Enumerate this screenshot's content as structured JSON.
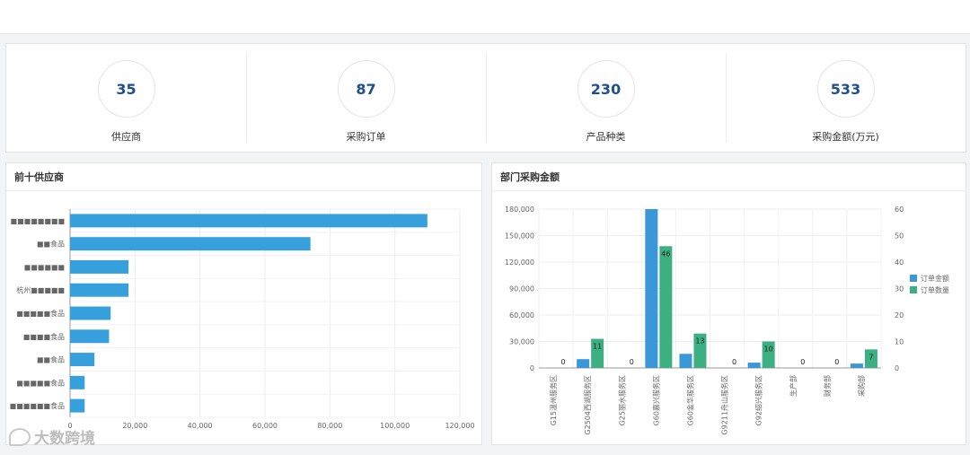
{
  "stats": [
    {
      "value": "35",
      "label": "供应商"
    },
    {
      "value": "87",
      "label": "采购订单"
    },
    {
      "value": "230",
      "label": "产品种类"
    },
    {
      "value": "533",
      "label": "采购金额(万元)"
    }
  ],
  "panels": {
    "left_title": "前十供应商",
    "right_title": "部门采购金额"
  },
  "watermark": "大数跨境",
  "chart_data": [
    {
      "type": "bar",
      "orientation": "horizontal",
      "categories": [
        "■■■■■■■■",
        "■■食品",
        "■■■■■■",
        "杭州■■■■■",
        "■■■■■食品",
        "■■■■食品",
        "■■食品",
        "■■■■■食品",
        "■■■■■■食品"
      ],
      "values": [
        110000,
        74000,
        18000,
        18000,
        12500,
        12000,
        7500,
        4500,
        4500
      ],
      "xlim": [
        0,
        120000
      ],
      "xticks": [
        "0",
        "20,000",
        "40,000",
        "60,000",
        "80,000",
        "100,000",
        "120,000"
      ],
      "color": "#36a0dc",
      "grid": true
    },
    {
      "type": "bar",
      "categories": [
        "G15温州服务区",
        "G2504西湖服务区",
        "G25丽水服务区",
        "G60嘉兴服务区",
        "G60金华服务区",
        "G9211舟山服务区",
        "G92绍兴服务区",
        "生产部",
        "财务部",
        "采购部"
      ],
      "series": [
        {
          "name": "订单金额",
          "axis": "left",
          "values": [
            0,
            10000,
            0,
            180000,
            16000,
            0,
            6000,
            0,
            0,
            5000
          ],
          "color": "#3a97d8"
        },
        {
          "name": "订单数量",
          "axis": "right",
          "values": [
            0,
            11,
            0,
            46,
            13,
            0,
            10,
            0,
            0,
            7
          ],
          "color": "#3db083"
        }
      ],
      "data_labels": [
        "0",
        "11",
        "0",
        "46",
        "13",
        "0",
        "10",
        "0",
        "0",
        "7"
      ],
      "ylim_left": [
        0,
        180000
      ],
      "yticks_left": [
        "0",
        "30,000",
        "60,000",
        "90,000",
        "120,000",
        "150,000",
        "180,000"
      ],
      "ylim_right": [
        0,
        60
      ],
      "yticks_right": [
        "0",
        "10",
        "20",
        "30",
        "40",
        "50",
        "60"
      ],
      "legend": "right"
    }
  ]
}
